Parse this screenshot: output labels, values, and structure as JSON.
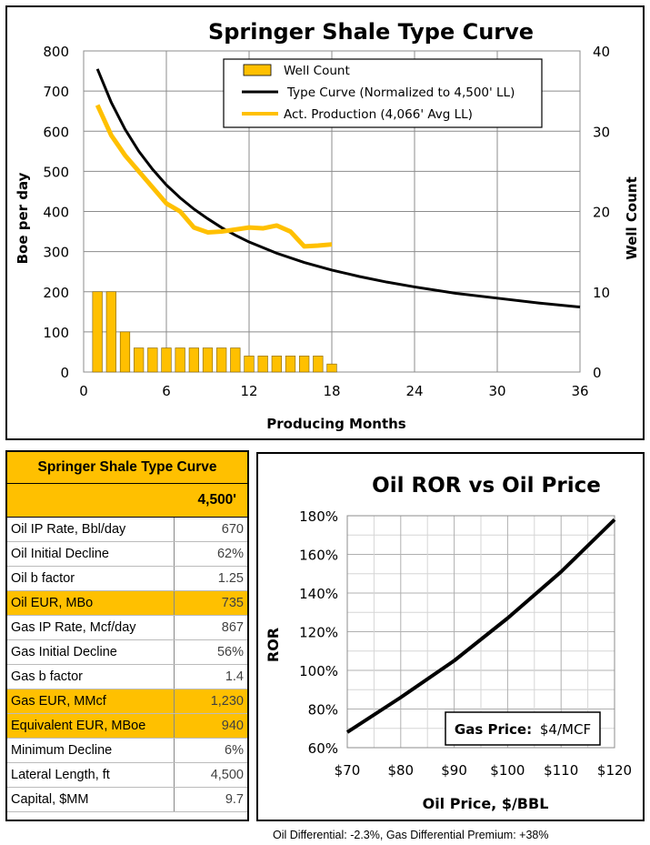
{
  "chart_data": [
    {
      "type": "bar+line",
      "title": "Springer Shale Type Curve",
      "xlabel": "Producing Months",
      "ylabel": "Boe per day",
      "y2label": "Well Count",
      "xlim": [
        0,
        36
      ],
      "ylim": [
        0,
        800
      ],
      "y2lim": [
        0,
        40
      ],
      "xticks": [
        "0",
        "6",
        "12",
        "18",
        "24",
        "30",
        "36"
      ],
      "yticks": [
        "0",
        "100",
        "200",
        "300",
        "400",
        "500",
        "600",
        "700",
        "800"
      ],
      "y2ticks": [
        "0",
        "10",
        "20",
        "30",
        "40"
      ],
      "grid": true,
      "legend_position": "top-right",
      "legend": [
        "Well Count",
        "Type Curve (Normalized to 4,500' LL)",
        "Act. Production (4,066' Avg LL)"
      ],
      "well_count": {
        "name": "Well Count",
        "color": "#ffc000",
        "months": [
          1,
          2,
          3,
          4,
          5,
          6,
          7,
          8,
          9,
          10,
          11,
          12,
          13,
          14,
          15,
          16,
          17,
          18
        ],
        "values": [
          10,
          10,
          5,
          3,
          3,
          3,
          3,
          3,
          3,
          3,
          3,
          2,
          2,
          2,
          2,
          2,
          2,
          1
        ]
      },
      "type_curve": {
        "name": "Type Curve (Normalized to 4,500' LL)",
        "color": "#000000",
        "x": [
          1,
          2,
          3,
          4,
          5,
          6,
          7,
          8,
          9,
          10,
          11,
          12,
          14,
          16,
          18,
          20,
          22,
          24,
          27,
          30,
          33,
          36
        ],
        "y": [
          755,
          672,
          605,
          550,
          505,
          466,
          434,
          406,
          382,
          360,
          341,
          324,
          296,
          273,
          254,
          238,
          224,
          212,
          196,
          184,
          172,
          162
        ]
      },
      "act_production": {
        "name": "Act. Production (4,066' Avg LL)",
        "color": "#ffc000",
        "x": [
          1,
          2,
          3,
          4,
          5,
          6,
          7,
          8,
          9,
          10,
          11,
          12,
          13,
          14,
          15,
          16,
          17,
          18
        ],
        "y": [
          665,
          590,
          540,
          500,
          460,
          420,
          400,
          360,
          348,
          350,
          355,
          360,
          358,
          365,
          350,
          313,
          315,
          318
        ]
      }
    },
    {
      "type": "line",
      "title": "Oil ROR vs Oil Price",
      "xlabel": "Oil Price, $/BBL",
      "ylabel": "ROR",
      "xlim": [
        70,
        120
      ],
      "ylim": [
        60,
        180
      ],
      "xticks": [
        "$70",
        "$80",
        "$90",
        "$100",
        "$110",
        "$120"
      ],
      "yticks": [
        "60%",
        "80%",
        "100%",
        "120%",
        "140%",
        "160%",
        "180%"
      ],
      "grid": true,
      "series": [
        {
          "color": "#000000",
          "x": [
            70,
            80,
            90,
            100,
            110,
            120
          ],
          "y": [
            68,
            86,
            105,
            127,
            151,
            178
          ]
        }
      ],
      "annotation": {
        "label": "Gas Price:",
        "value": "$4/MCF"
      }
    }
  ],
  "type_curve_table": {
    "title": "Springer Shale Type Curve",
    "column_header": "4,500'",
    "rows": [
      {
        "label": "Oil IP Rate, Bbl/day",
        "value": "670",
        "highlight": false
      },
      {
        "label": "Oil Initial Decline",
        "value": "62%",
        "highlight": false
      },
      {
        "label": "Oil b factor",
        "value": "1.25",
        "highlight": false
      },
      {
        "label": "Oil EUR, MBo",
        "value": "735",
        "highlight": true
      },
      {
        "label": "Gas IP Rate, Mcf/day",
        "value": "867",
        "highlight": false
      },
      {
        "label": "Gas Initial Decline",
        "value": "56%",
        "highlight": false
      },
      {
        "label": "Gas b factor",
        "value": "1.4",
        "highlight": false
      },
      {
        "label": "Gas EUR, MMcf",
        "value": "1,230",
        "highlight": true
      },
      {
        "label": "Equivalent EUR, MBoe",
        "value": "940",
        "highlight": true
      },
      {
        "label": "Minimum Decline",
        "value": "6%",
        "highlight": false
      },
      {
        "label": "Lateral Length, ft",
        "value": "4,500",
        "highlight": false
      },
      {
        "label": "Capital, $MM",
        "value": "9.7",
        "highlight": false
      }
    ]
  },
  "footnote": "Oil Differential: -2.3%, Gas Differential Premium: +38%"
}
